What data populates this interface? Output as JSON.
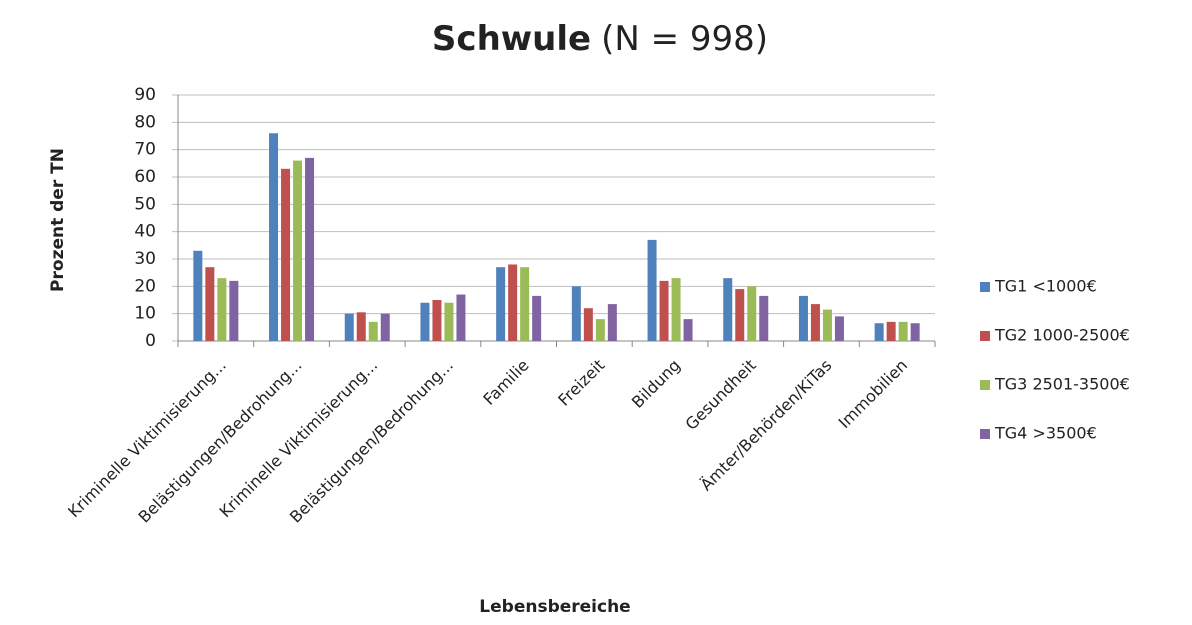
{
  "chart_data": {
    "type": "bar",
    "title": "Schwule",
    "subtitle": "(N = 998)",
    "x_label": "Lebensbereiche",
    "y_label": "Prozent der TN",
    "categories": [
      "Kriminelle Viktimisierung...",
      "Belästigungen/Bedrohung...",
      "Kriminelle Viktimisierung...",
      "Belästigungen/Bedrohung...",
      "Familie",
      "Freizeit",
      "Bildung",
      "Gesundheit",
      "Ämter/Behörden/KiTas",
      "Immobilien"
    ],
    "series": [
      {
        "name": "TG1 <1000€",
        "color": "#4f81bd",
        "values": [
          33,
          76,
          10,
          14,
          27,
          20,
          37,
          23,
          16.5,
          6.5
        ]
      },
      {
        "name": "TG2 1000-2500€",
        "color": "#c0504d",
        "values": [
          27,
          63,
          10.5,
          15,
          28,
          12,
          22,
          19,
          13.5,
          7
        ]
      },
      {
        "name": "TG3 2501-3500€",
        "color": "#9bbb59",
        "values": [
          23,
          66,
          7,
          14,
          27,
          8,
          23,
          20,
          11.5,
          7
        ]
      },
      {
        "name": "TG4 >3500€",
        "color": "#8064a2",
        "values": [
          22,
          67,
          10,
          17,
          16.5,
          13.5,
          8,
          16.5,
          9,
          6.5
        ]
      }
    ],
    "ylim": [
      0,
      90
    ],
    "yticks": [
      0,
      10,
      20,
      30,
      40,
      50,
      60,
      70,
      80,
      90
    ],
    "grid": true,
    "legend": "right"
  }
}
